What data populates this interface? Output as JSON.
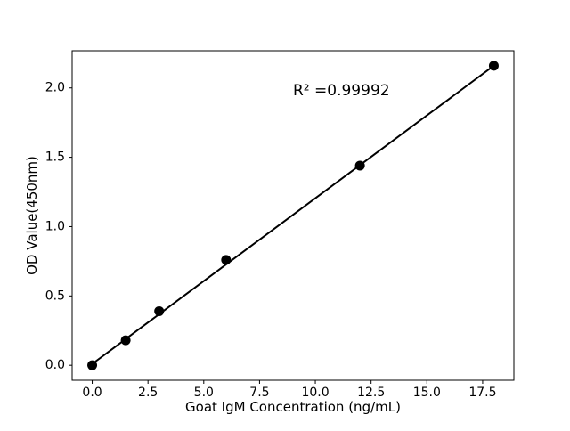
{
  "chart_data": {
    "type": "scatter",
    "title": "",
    "xlabel": "Goat IgM Concentration (ng/mL)",
    "ylabel": "OD Value(450nm)",
    "x": [
      0,
      1.5,
      3,
      6,
      12,
      18
    ],
    "y": [
      0.0,
      0.18,
      0.39,
      0.76,
      1.44,
      2.16
    ],
    "fit_line": {
      "x1": 0,
      "y1": 0.01,
      "x2": 18,
      "y2": 2.16
    },
    "annotation": {
      "text": "R² =0.99992",
      "x": 9,
      "y": 1.98
    },
    "xlim": [
      -0.9,
      18.9
    ],
    "ylim": [
      -0.108,
      2.268
    ],
    "x_ticks": [
      0,
      2.5,
      5,
      7.5,
      10,
      12.5,
      15,
      17.5
    ],
    "x_tick_labels": [
      "0.0",
      "2.5",
      "5.0",
      "7.5",
      "10.0",
      "12.5",
      "15.0",
      "17.5"
    ],
    "y_ticks": [
      0,
      0.5,
      1,
      1.5,
      2
    ],
    "y_tick_labels": [
      "0.0",
      "0.5",
      "1.0",
      "1.5",
      "2.0"
    ],
    "grid": false,
    "legend": false,
    "colors": {
      "background": "#ffffff",
      "marker": "#000000",
      "line": "#000000",
      "spine": "#000000",
      "text": "#000000"
    }
  }
}
